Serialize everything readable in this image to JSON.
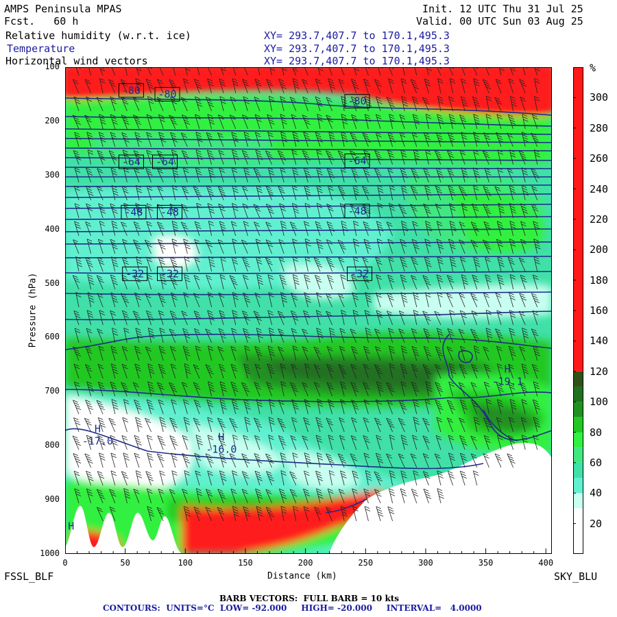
{
  "header": {
    "model": "AMPS Peninsula MPAS",
    "fcst": "Fcst.   60 h",
    "init": "Init. 12 UTC Thu 31 Jul 25",
    "valid": "Valid. 00 UTC Sun 03 Aug 25",
    "field1": "Relative humidity (w.r.t. ice)",
    "field2": "Temperature",
    "field3": "Horizontal wind vectors",
    "xy1": "XY= 293.7,407.7 to 170.1,495.3",
    "xy2": "XY= 293.7,407.7 to 170.1,495.3",
    "xy3": "XY= 293.7,407.7 to 170.1,495.3"
  },
  "axes": {
    "ylabel": "Pressure (hPa)",
    "xlabel": "Distance (km)",
    "left_station": "FSSL_BLF",
    "right_station": "SKY_BLU",
    "colorbar_unit": "%"
  },
  "footer": {
    "barb": "BARB VECTORS:  FULL BARB = 10 kts",
    "contours": "CONTOURS:  UNITS=°C  LOW= -92.000     HIGH= -20.000     INTERVAL=   4.0000"
  },
  "colors": {
    "contour": "#1e2a8c",
    "barb": "#222222"
  },
  "chart_data": {
    "type": "heatmap",
    "x_ticks": [
      0,
      50,
      100,
      150,
      200,
      250,
      300,
      350,
      400
    ],
    "xlim": [
      0,
      405
    ],
    "y_ticks": [
      100,
      200,
      300,
      400,
      500,
      600,
      700,
      800,
      900,
      1000
    ],
    "ylim": [
      1000,
      100
    ],
    "colorbar": {
      "ticks": [
        20,
        40,
        60,
        80,
        100,
        120,
        140,
        160,
        180,
        200,
        220,
        240,
        260,
        280,
        300
      ],
      "range": [
        0,
        320
      ],
      "bands": [
        {
          "min": 0,
          "max": 20,
          "color": "#ffffff"
        },
        {
          "min": 20,
          "max": 30,
          "color": "#ffffff"
        },
        {
          "min": 30,
          "max": 40,
          "color": "#c8fff0"
        },
        {
          "min": 40,
          "max": 50,
          "color": "#60f0d0"
        },
        {
          "min": 50,
          "max": 60,
          "color": "#40e0a8"
        },
        {
          "min": 60,
          "max": 70,
          "color": "#40e880"
        },
        {
          "min": 70,
          "max": 80,
          "color": "#30f040"
        },
        {
          "min": 80,
          "max": 90,
          "color": "#20c820"
        },
        {
          "min": 90,
          "max": 100,
          "color": "#209020"
        },
        {
          "min": 100,
          "max": 110,
          "color": "#207020"
        },
        {
          "min": 110,
          "max": 120,
          "color": "#305018"
        },
        {
          "min": 120,
          "max": 320,
          "color": "#ff1a1a"
        }
      ]
    },
    "temperature_contour_labels": [
      {
        "text": "-80",
        "km": 55,
        "p": 143
      },
      {
        "text": "-80",
        "km": 85,
        "p": 150
      },
      {
        "text": "-80",
        "km": 243,
        "p": 163
      },
      {
        "text": "-64",
        "km": 55,
        "p": 275
      },
      {
        "text": "-64",
        "km": 83,
        "p": 275
      },
      {
        "text": "-64",
        "km": 243,
        "p": 273
      },
      {
        "text": "-48",
        "km": 57,
        "p": 368
      },
      {
        "text": "-48",
        "km": 87,
        "p": 368
      },
      {
        "text": "-48",
        "km": 243,
        "p": 366
      },
      {
        "text": "-32",
        "km": 58,
        "p": 482
      },
      {
        "text": "-32",
        "km": 87,
        "p": 482
      },
      {
        "text": "-32",
        "km": 245,
        "p": 482
      }
    ],
    "highs": [
      {
        "label": "H",
        "value": "-17.0",
        "km": 27,
        "p": 775
      },
      {
        "label": "H",
        "value": "-16.0",
        "km": 130,
        "p": 790
      },
      {
        "label": "H",
        "value": "-19.1",
        "km": 368,
        "p": 665
      },
      {
        "label": "H",
        "value": "",
        "km": 5,
        "p": 955
      }
    ]
  }
}
